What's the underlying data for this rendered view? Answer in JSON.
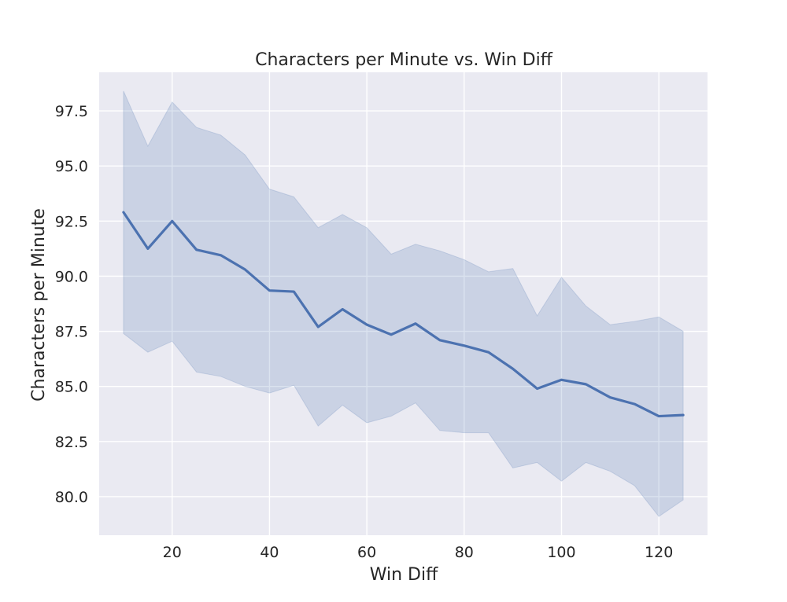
{
  "chart_data": {
    "type": "line",
    "title": "Characters per Minute vs. Win Diff",
    "xlabel": "Win Diff",
    "ylabel": "Characters per Minute",
    "xlim": [
      5,
      130
    ],
    "ylim": [
      78.25,
      99.25
    ],
    "xticks": [
      20,
      40,
      60,
      80,
      100,
      120
    ],
    "yticks": [
      80.0,
      82.5,
      85.0,
      87.5,
      90.0,
      92.5,
      95.0,
      97.5
    ],
    "grid": true,
    "legend": "none",
    "colors": {
      "line": "#4c72b0",
      "plot_background": "#eaeaf2",
      "grid": "#ffffff"
    },
    "series": [
      {
        "x": [
          10,
          15,
          20,
          25,
          30,
          35,
          40,
          45,
          50,
          55,
          60,
          65,
          70,
          75,
          80,
          85,
          90,
          95,
          100,
          105,
          110,
          115,
          120,
          125
        ],
        "values": [
          92.9,
          91.25,
          92.5,
          91.2,
          90.95,
          90.3,
          89.35,
          89.3,
          87.7,
          88.5,
          87.8,
          87.35,
          87.85,
          87.1,
          86.85,
          86.55,
          85.8,
          84.9,
          85.3,
          85.1,
          84.5,
          84.2,
          83.65,
          83.7
        ],
        "ci_lower": [
          87.4,
          86.55,
          87.05,
          85.65,
          85.45,
          85.0,
          84.7,
          85.05,
          83.2,
          84.15,
          83.35,
          83.65,
          84.25,
          83.0,
          82.9,
          82.9,
          81.3,
          81.55,
          80.7,
          81.55,
          81.15,
          80.5,
          79.1,
          79.85
        ],
        "ci_upper": [
          98.4,
          95.9,
          97.9,
          96.75,
          96.4,
          95.5,
          93.95,
          93.6,
          92.2,
          92.8,
          92.2,
          91.0,
          91.45,
          91.15,
          90.75,
          90.2,
          90.35,
          88.2,
          89.95,
          88.65,
          87.8,
          87.95,
          88.15,
          87.5
        ]
      }
    ]
  }
}
